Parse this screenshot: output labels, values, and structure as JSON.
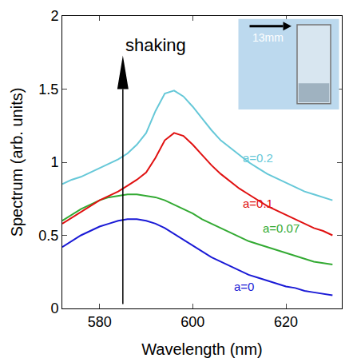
{
  "chart_data": {
    "type": "line",
    "x_label": "Wavelength (nm)",
    "y_label": "Spectrum (arb. units)",
    "x": [
      572,
      574,
      576,
      578,
      580,
      582,
      584,
      586,
      588,
      590,
      592,
      594,
      596,
      598,
      600,
      602,
      604,
      606,
      608,
      610,
      612,
      614,
      616,
      618,
      620,
      622,
      624,
      626,
      628,
      630
    ],
    "series": [
      {
        "name": "a=0",
        "color": "#1a1ad6",
        "values": [
          0.42,
          0.46,
          0.5,
          0.53,
          0.56,
          0.58,
          0.6,
          0.61,
          0.61,
          0.6,
          0.58,
          0.55,
          0.51,
          0.47,
          0.43,
          0.39,
          0.35,
          0.32,
          0.29,
          0.26,
          0.23,
          0.21,
          0.19,
          0.17,
          0.15,
          0.14,
          0.12,
          0.11,
          0.1,
          0.09
        ]
      },
      {
        "name": "a=0.07",
        "color": "#33aa33",
        "values": [
          0.6,
          0.64,
          0.68,
          0.71,
          0.74,
          0.76,
          0.77,
          0.78,
          0.78,
          0.77,
          0.76,
          0.74,
          0.71,
          0.68,
          0.65,
          0.61,
          0.58,
          0.55,
          0.52,
          0.49,
          0.46,
          0.44,
          0.42,
          0.4,
          0.38,
          0.36,
          0.34,
          0.32,
          0.31,
          0.3
        ]
      },
      {
        "name": "a=0.1",
        "color": "#e01010",
        "values": [
          0.58,
          0.62,
          0.66,
          0.7,
          0.74,
          0.77,
          0.8,
          0.84,
          0.88,
          0.93,
          1.03,
          1.15,
          1.2,
          1.18,
          1.12,
          1.05,
          0.98,
          0.92,
          0.87,
          0.82,
          0.78,
          0.74,
          0.7,
          0.67,
          0.64,
          0.61,
          0.58,
          0.55,
          0.53,
          0.5
        ]
      },
      {
        "name": "a=0.2",
        "color": "#66c8d8",
        "values": [
          0.85,
          0.88,
          0.9,
          0.93,
          0.96,
          0.99,
          1.02,
          1.06,
          1.12,
          1.2,
          1.35,
          1.47,
          1.49,
          1.45,
          1.38,
          1.3,
          1.22,
          1.15,
          1.1,
          1.05,
          1.0,
          0.96,
          0.92,
          0.89,
          0.86,
          0.83,
          0.8,
          0.78,
          0.76,
          0.74
        ]
      }
    ],
    "xlim": [
      572,
      632
    ],
    "xticks": [
      580,
      600,
      620
    ],
    "ylim": [
      0,
      2
    ],
    "yticks": [
      0,
      {
        "value": 0.5,
        "label": "0.5"
      },
      1,
      {
        "value": 1.5,
        "label": "1.5"
      },
      2
    ],
    "grid": false,
    "legend": "none",
    "annotations": [
      {
        "text": "shaking",
        "x": 592,
        "y": 1.8
      },
      {
        "text": "a=0.2",
        "x": 614,
        "y": 1.03,
        "color": "#66c8d8"
      },
      {
        "text": "a=0.1",
        "x": 614,
        "y": 0.72,
        "color": "#e01010"
      },
      {
        "text": "a=0.07",
        "x": 619,
        "y": 0.55,
        "color": "#33aa33"
      },
      {
        "text": "a=0",
        "x": 611,
        "y": 0.15,
        "color": "#1a1ad6"
      }
    ],
    "inset_label": "13mm"
  }
}
